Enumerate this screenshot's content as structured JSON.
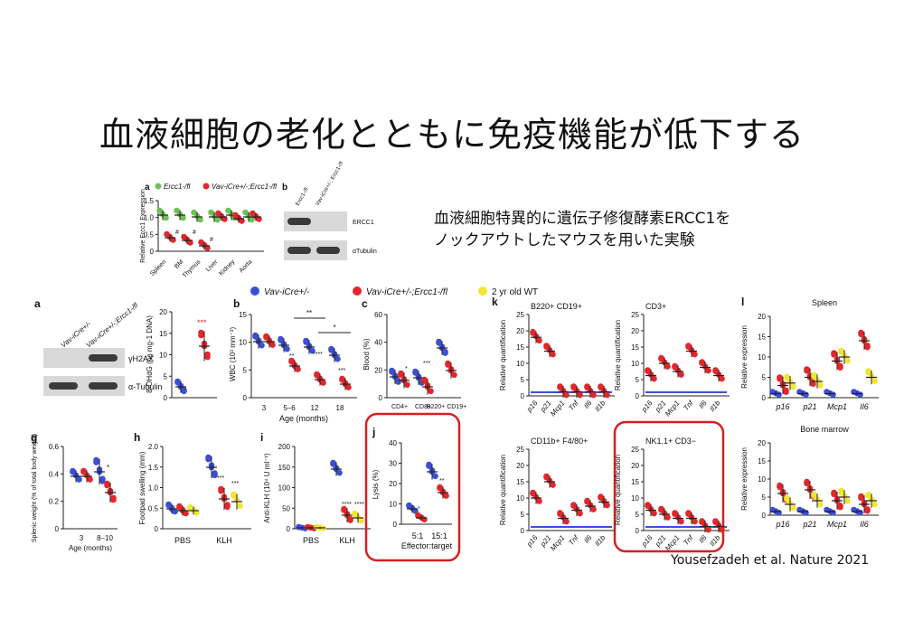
{
  "slide_title": "血液細胞の老化とともに免疫機能が低下する",
  "description": [
    "血液細胞特異的に遺伝子修復酵素ERCC1を",
    "ノックアウトしたマウスを用いた実験"
  ],
  "citation": "Yousefzadeh et al. Nature 2021",
  "colors": {
    "ctrl": "#3b4fd6",
    "ko": "#e3262b",
    "old": "#f4e534",
    "ercc_ctrl": "#6cc257",
    "highlight": "#d62020"
  },
  "top_panel_a": {
    "label": "a",
    "legend": [
      "Ercc1-/fl",
      "Vav-iCre+/-;Ercc1-/fl"
    ],
    "ylabel": "Relative Ercc1 Expression",
    "categories": [
      "Spleen",
      "BM",
      "Thymus",
      "Liver",
      "Kidney",
      "Aorta"
    ],
    "yticks": [
      "1.5",
      "1.0",
      "0.5",
      "0"
    ],
    "marks": [
      "#",
      "#",
      "#"
    ]
  },
  "top_panel_b": {
    "label": "b",
    "lanes": [
      "Ercc1-/fl",
      "Vav-iCre+/-; Ercc1-/fl"
    ],
    "bands": [
      "ERCC1",
      "αTubulin"
    ]
  },
  "legend_main": [
    "Vav-iCre+/-",
    "Vav-iCre+/-;Ercc1-/fl",
    "2 yr old WT"
  ],
  "panel_a": {
    "label": "a",
    "lanes": [
      "Vav-iCre+/-",
      "Vav-iCre+/-;Ercc1-/fl"
    ],
    "bands": [
      "γH2AX",
      "α-Tubulin"
    ],
    "ylabel": "8-OHdG (ng mg-1 DNA)",
    "yticks": [
      "20",
      "15",
      "10",
      "5",
      "0"
    ],
    "sig": "***"
  },
  "panel_b": {
    "label": "b",
    "ylabel": "WBC (10³ mm⁻³)",
    "xlabel": "Age (months)",
    "categories": [
      "3",
      "5–6",
      "12",
      "18"
    ],
    "yticks": [
      "15",
      "10",
      "5",
      "0"
    ],
    "sig": [
      "**",
      "****",
      "***",
      "**",
      "*"
    ]
  },
  "panel_c": {
    "label": "c",
    "ylabel": "Blood (%)",
    "categories": [
      "CD4+",
      "CD8+",
      "B220+ CD19+"
    ],
    "yticks": [
      "60",
      "40",
      "20",
      "0"
    ],
    "sig": [
      "*",
      "***"
    ]
  },
  "panel_g": {
    "label": "g",
    "ylabel": "Splenic weight (% of total body weight)",
    "xlabel": "Age (months)",
    "categories": [
      "3",
      "8–10"
    ],
    "yticks": [
      "0.6",
      "0.4",
      "0.2",
      "0"
    ],
    "sig": "*"
  },
  "panel_h": {
    "label": "h",
    "ylabel": "Footpad swelling (mm)",
    "categories": [
      "PBS",
      "KLH"
    ],
    "yticks": [
      "2.0",
      "1.5",
      "1.0",
      "0.5",
      "0"
    ],
    "sig": [
      "***",
      "***"
    ]
  },
  "panel_i": {
    "label": "i",
    "ylabel": "Anti-KLH (10⁴ U ml⁻¹)",
    "categories": [
      "PBS",
      "KLH"
    ],
    "yticks": [
      "200",
      "150",
      "100",
      "50",
      "0"
    ],
    "sig": [
      "****",
      "****"
    ]
  },
  "panel_j": {
    "label": "j",
    "ylabel": "Lysis (%)",
    "xlabel": "Effector:target",
    "categories": [
      "5:1",
      "15:1"
    ],
    "yticks": [
      "40",
      "30",
      "20",
      "10",
      "0"
    ],
    "sig": [
      "*",
      "**"
    ]
  },
  "panel_k": {
    "label": "k",
    "ylabel": "Relative quantification",
    "genes": [
      "p16",
      "p21",
      "Mcp1",
      "Tnf",
      "Il6",
      "Il1b"
    ],
    "sub": [
      {
        "title": "B220+  CD19+",
        "yticks": [
          "25",
          "20",
          "15",
          "10",
          "5",
          "0"
        ]
      },
      {
        "title": "CD3+",
        "yticks": [
          "25",
          "20",
          "15",
          "10",
          "5",
          "0"
        ]
      },
      {
        "title": "CD11b+  F4/80+",
        "yticks": [
          "25",
          "20",
          "15",
          "10",
          "5",
          "0"
        ]
      },
      {
        "title": "NK1.1+  CD3−",
        "yticks": [
          "25",
          "20",
          "15",
          "10",
          "5",
          "0"
        ]
      }
    ]
  },
  "panel_l": {
    "label": "l",
    "ylabel": "Relative expression",
    "genes": [
      "p16",
      "p21",
      "Mcp1",
      "Il6"
    ],
    "sub": [
      {
        "title": "Spleen",
        "yticks": [
          "20",
          "15",
          "10",
          "5",
          "0"
        ]
      },
      {
        "title": "Bone marrow",
        "yticks": [
          "20",
          "15",
          "10",
          "5",
          "0"
        ]
      }
    ]
  }
}
